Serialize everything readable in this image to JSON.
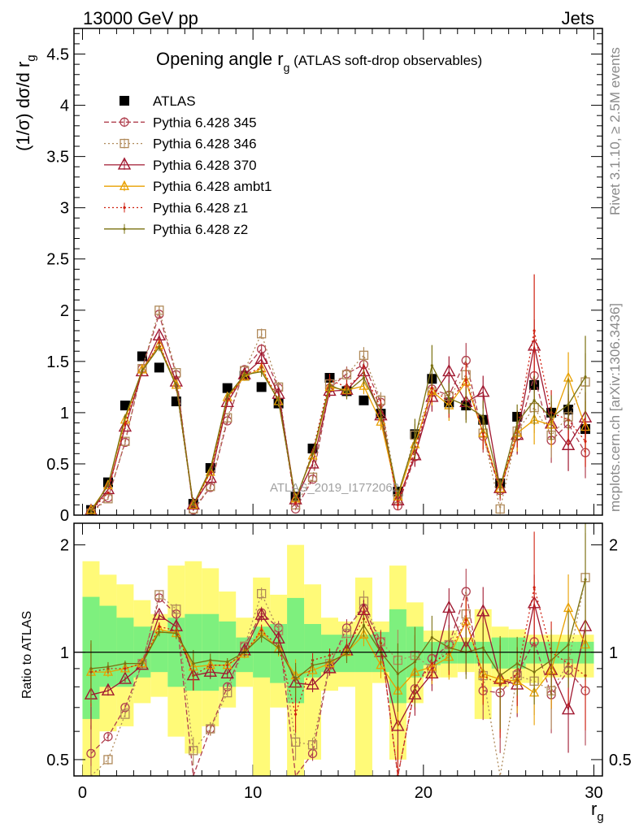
{
  "header": {
    "left": "13000 GeV pp",
    "right": "Jets",
    "side_rivet": "Rivet 3.1.10, ≥ 2.5M events",
    "side_mcplots": "mcplots.cern.ch [arXiv:1306.3436]",
    "watermark": "ATLAS_2019_I1772062"
  },
  "title": {
    "main": "Opening angle r",
    "sub": "g",
    "tail": " (ATLAS soft-drop observables)"
  },
  "axes": {
    "ylabel_main": "(1/σ) dσ/d r",
    "ylabel_main_sub": "g",
    "ylabel_ratio": "Ratio to ATLAS",
    "xlabel": "r",
    "xlabel_sub": "g",
    "x_ticks": [
      "0",
      "10",
      "20",
      "30"
    ],
    "y_ticks_main": [
      "0",
      "0.5",
      "1",
      "1.5",
      "2",
      "2.5",
      "3",
      "3.5",
      "4",
      "4.5"
    ],
    "y_ticks_ratio": [
      "0.5",
      "1",
      "2"
    ]
  },
  "chart_data": [
    {
      "type": "line",
      "panel": "main",
      "xlim": [
        -0.5,
        30.5
      ],
      "ylim": [
        0,
        4.75
      ],
      "x": [
        0.5,
        1.5,
        2.5,
        3.5,
        4.5,
        5.5,
        6.5,
        7.5,
        8.5,
        9.5,
        10.5,
        11.5,
        12.5,
        13.5,
        14.5,
        15.5,
        16.5,
        17.5,
        18.5,
        19.5,
        20.5,
        21.5,
        22.5,
        23.5,
        24.5,
        25.5,
        26.5,
        27.5,
        28.5,
        29.5
      ],
      "series": [
        {
          "name": "ATLAS",
          "color": "#000000",
          "style": "data",
          "marker": "square-filled",
          "values": [
            0.05,
            0.32,
            1.07,
            1.55,
            1.44,
            1.11,
            0.11,
            0.46,
            1.24,
            1.36,
            1.25,
            1.09,
            0.18,
            0.65,
            1.34,
            1.21,
            1.12,
            0.99,
            0.23,
            0.79,
            1.33,
            1.1,
            1.07,
            0.93,
            0.31,
            0.96,
            1.27,
            1.0,
            1.03,
            0.84
          ],
          "errors": [
            0.01,
            0.02,
            0.03,
            0.03,
            0.03,
            0.03,
            0.01,
            0.02,
            0.03,
            0.03,
            0.03,
            0.03,
            0.01,
            0.02,
            0.04,
            0.04,
            0.04,
            0.04,
            0.02,
            0.04,
            0.06,
            0.06,
            0.06,
            0.06,
            0.03,
            0.06,
            0.08,
            0.08,
            0.08,
            0.08
          ]
        },
        {
          "name": "Pythia 6.428 345",
          "color": "#b0404f",
          "style": "dashed",
          "marker": "circle",
          "values": [
            0.03,
            0.17,
            0.71,
            1.43,
            1.96,
            1.37,
            0.05,
            0.27,
            0.92,
            1.42,
            1.62,
            1.24,
            0.06,
            0.35,
            1.24,
            1.38,
            1.47,
            1.1,
            0.09,
            0.57,
            1.23,
            1.17,
            1.51,
            0.77,
            0.24,
            0.77,
            1.36,
            0.73,
            0.89,
            0.61
          ],
          "errors": [
            0.01,
            0.01,
            0.02,
            0.03,
            0.04,
            0.04,
            0.01,
            0.02,
            0.03,
            0.04,
            0.05,
            0.05,
            0.01,
            0.03,
            0.06,
            0.07,
            0.08,
            0.08,
            0.04,
            0.1,
            0.14,
            0.15,
            0.17,
            0.16,
            0.1,
            0.18,
            0.25,
            0.22,
            0.25,
            0.25
          ]
        },
        {
          "name": "Pythia 6.428 346",
          "color": "#b08a5a",
          "style": "dotted",
          "marker": "square",
          "values": [
            0.02,
            0.16,
            0.72,
            1.43,
            2.0,
            1.39,
            0.06,
            0.28,
            0.95,
            1.41,
            1.77,
            1.25,
            0.1,
            0.37,
            1.28,
            1.37,
            1.56,
            1.12,
            0.16,
            0.78,
            1.2,
            1.16,
            1.37,
            0.8,
            0.06,
            0.82,
            1.05,
            0.78,
            0.96,
            1.3
          ],
          "errors": [
            0.01,
            0.01,
            0.02,
            0.03,
            0.04,
            0.04,
            0.01,
            0.02,
            0.03,
            0.04,
            0.05,
            0.05,
            0.02,
            0.03,
            0.06,
            0.07,
            0.08,
            0.08,
            0.05,
            0.11,
            0.14,
            0.15,
            0.17,
            0.16,
            0.05,
            0.18,
            0.25,
            0.22,
            0.25,
            0.28
          ]
        },
        {
          "name": "Pythia 6.428 370",
          "color": "#a01830",
          "style": "solid",
          "marker": "triangle",
          "values": [
            0.04,
            0.25,
            0.86,
            1.4,
            1.75,
            1.3,
            0.1,
            0.36,
            1.1,
            1.37,
            1.52,
            1.18,
            0.15,
            0.5,
            1.21,
            1.22,
            1.4,
            0.97,
            0.14,
            0.58,
            1.15,
            1.4,
            1.1,
            1.2,
            0.26,
            0.78,
            1.65,
            0.89,
            0.68,
            0.95
          ],
          "errors": [
            0.01,
            0.01,
            0.02,
            0.03,
            0.04,
            0.04,
            0.01,
            0.02,
            0.03,
            0.04,
            0.05,
            0.05,
            0.02,
            0.03,
            0.06,
            0.07,
            0.08,
            0.08,
            0.05,
            0.1,
            0.14,
            0.15,
            0.17,
            0.16,
            0.09,
            0.18,
            0.26,
            0.22,
            0.25,
            0.25
          ]
        },
        {
          "name": "Pythia 6.428 ambt1",
          "color": "#e8a000",
          "style": "solid",
          "marker": "triangle-small",
          "values": [
            0.05,
            0.29,
            0.93,
            1.42,
            1.66,
            1.27,
            0.1,
            0.42,
            1.15,
            1.35,
            1.43,
            1.11,
            0.16,
            0.58,
            1.25,
            1.22,
            1.26,
            0.91,
            0.18,
            0.69,
            1.21,
            1.07,
            1.3,
            0.8,
            0.26,
            0.8,
            0.93,
            0.88,
            1.34,
            0.86
          ],
          "errors": [
            0.01,
            0.01,
            0.02,
            0.03,
            0.04,
            0.04,
            0.01,
            0.02,
            0.03,
            0.04,
            0.05,
            0.05,
            0.02,
            0.03,
            0.06,
            0.07,
            0.08,
            0.08,
            0.05,
            0.1,
            0.14,
            0.15,
            0.17,
            0.16,
            0.09,
            0.18,
            0.24,
            0.22,
            0.25,
            0.25
          ]
        },
        {
          "name": "Pythia 6.428 z1",
          "color": "#d02010",
          "style": "dotted",
          "marker": "dot",
          "values": [
            0.04,
            0.22,
            0.89,
            1.4,
            1.68,
            1.25,
            0.09,
            0.42,
            1.13,
            1.37,
            1.44,
            1.13,
            0.12,
            0.62,
            1.32,
            1.25,
            1.39,
            1.05,
            0.1,
            0.63,
            1.24,
            1.1,
            1.32,
            0.8,
            0.25,
            0.84,
            1.8,
            1.0,
            0.93,
            0.72
          ],
          "errors": [
            0.01,
            0.01,
            0.02,
            0.03,
            0.04,
            0.04,
            0.01,
            0.02,
            0.03,
            0.04,
            0.05,
            0.05,
            0.02,
            0.03,
            0.06,
            0.07,
            0.08,
            0.08,
            0.05,
            0.1,
            0.14,
            0.15,
            0.17,
            0.16,
            0.09,
            0.18,
            0.55,
            0.22,
            0.25,
            0.25
          ]
        },
        {
          "name": "Pythia 6.428 z2",
          "color": "#7a7010",
          "style": "solid",
          "marker": "dot",
          "values": [
            0.04,
            0.29,
            0.96,
            1.41,
            1.64,
            1.26,
            0.1,
            0.45,
            1.16,
            1.37,
            1.4,
            1.12,
            0.15,
            0.6,
            1.27,
            1.2,
            1.34,
            0.99,
            0.2,
            0.74,
            1.46,
            1.14,
            1.07,
            0.96,
            0.27,
            0.9,
            1.12,
            0.95,
            1.08,
            1.35
          ],
          "errors": [
            0.01,
            0.01,
            0.02,
            0.03,
            0.04,
            0.04,
            0.01,
            0.02,
            0.03,
            0.04,
            0.05,
            0.05,
            0.02,
            0.03,
            0.06,
            0.07,
            0.08,
            0.08,
            0.05,
            0.2,
            0.2,
            0.15,
            0.17,
            0.16,
            0.09,
            0.18,
            0.24,
            0.22,
            0.25,
            0.4
          ]
        }
      ]
    },
    {
      "type": "line",
      "panel": "ratio",
      "log_y": true,
      "ylim": [
        0.45,
        2.3
      ],
      "x": [
        0.5,
        1.5,
        2.5,
        3.5,
        4.5,
        5.5,
        6.5,
        7.5,
        8.5,
        9.5,
        10.5,
        11.5,
        12.5,
        13.5,
        14.5,
        15.5,
        16.5,
        17.5,
        18.5,
        19.5,
        20.5,
        21.5,
        22.5,
        23.5,
        24.5,
        25.5,
        26.5,
        27.5,
        28.5,
        29.5
      ],
      "band_green": {
        "lo": [
          0.65,
          0.8,
          0.8,
          0.85,
          0.88,
          0.8,
          0.78,
          0.78,
          0.8,
          0.88,
          0.85,
          0.82,
          0.72,
          0.85,
          0.88,
          0.88,
          0.88,
          0.88,
          0.72,
          0.85,
          0.92,
          0.93,
          0.93,
          0.93,
          0.9,
          0.9,
          0.93,
          0.93,
          0.93,
          0.93
        ],
        "hi": [
          1.43,
          1.35,
          1.25,
          1.18,
          1.15,
          1.25,
          1.28,
          1.28,
          1.22,
          1.1,
          1.18,
          1.2,
          1.42,
          1.2,
          1.12,
          1.12,
          1.12,
          1.14,
          1.32,
          1.18,
          1.07,
          1.07,
          1.07,
          1.07,
          1.1,
          1.1,
          1.07,
          1.07,
          1.07,
          1.07
        ]
      },
      "band_yellow": {
        "lo": [
          0.35,
          0.6,
          0.62,
          0.72,
          0.75,
          0.58,
          0.52,
          0.62,
          0.7,
          0.8,
          0.45,
          0.7,
          0.3,
          0.5,
          0.78,
          0.8,
          0.35,
          0.82,
          0.5,
          0.72,
          0.85,
          0.85,
          0.88,
          0.65,
          0.8,
          0.82,
          0.82,
          0.85,
          0.85,
          0.85
        ],
        "hi": [
          1.8,
          1.65,
          1.55,
          1.4,
          1.28,
          1.75,
          1.8,
          1.72,
          1.48,
          1.25,
          1.62,
          1.45,
          2.0,
          1.55,
          1.25,
          1.22,
          1.62,
          1.22,
          1.75,
          1.38,
          1.15,
          1.15,
          1.1,
          1.32,
          1.18,
          1.16,
          1.12,
          1.12,
          1.12,
          1.12
        ]
      },
      "series": [
        {
          "name": "Pythia 6.428 345",
          "values": [
            0.52,
            0.58,
            0.7,
            0.93,
            1.42,
            1.28,
            0.43,
            0.61,
            0.8,
            1.04,
            1.29,
            1.17,
            0.34,
            0.52,
            0.92,
            1.17,
            1.33,
            1.07,
            0.35,
            0.79,
            0.96,
            1.05,
            1.48,
            0.78,
            0.77,
            0.87,
            1.07,
            0.76,
            0.89,
            0.78
          ]
        },
        {
          "name": "Pythia 6.428 346",
          "values": [
            0.4,
            0.5,
            0.67,
            0.93,
            1.45,
            1.32,
            0.53,
            0.61,
            0.77,
            1.04,
            1.46,
            1.15,
            0.56,
            0.55,
            0.93,
            1.13,
            1.39,
            1.07,
            0.95,
            0.98,
            0.9,
            1.05,
            1.28,
            0.86,
            0.22,
            0.86,
            0.83,
            0.78,
            0.93,
            1.62
          ]
        },
        {
          "name": "Pythia 6.428 370",
          "values": [
            0.76,
            0.78,
            0.84,
            0.92,
            1.27,
            1.18,
            0.86,
            0.88,
            0.87,
            1.01,
            1.27,
            1.09,
            0.82,
            0.81,
            0.9,
            1.01,
            1.31,
            1.0,
            0.62,
            0.76,
            0.87,
            1.33,
            1.03,
            1.3,
            0.84,
            0.81,
            1.37,
            0.89,
            0.69,
            1.18
          ]
        },
        {
          "name": "Pythia 6.428 ambt1",
          "values": [
            0.88,
            0.88,
            0.9,
            0.93,
            1.16,
            1.13,
            0.91,
            0.92,
            0.92,
            0.99,
            1.14,
            1.02,
            0.86,
            0.89,
            0.93,
            1.0,
            1.12,
            0.92,
            0.78,
            0.88,
            0.91,
            0.97,
            1.22,
            0.87,
            0.84,
            0.83,
            0.77,
            0.89,
            1.33,
            1.05
          ]
        },
        {
          "name": "Pythia 6.428 z1",
          "values": [
            0.88,
            0.9,
            0.9,
            0.93,
            1.18,
            1.15,
            0.86,
            0.92,
            0.92,
            1.0,
            1.15,
            1.04,
            0.67,
            0.95,
            0.98,
            1.03,
            1.24,
            1.06,
            0.45,
            0.8,
            0.93,
            1.0,
            1.23,
            0.86,
            0.81,
            0.87,
            1.52,
            1.0,
            0.93,
            0.86
          ]
        },
        {
          "name": "Pythia 6.428 z2",
          "values": [
            0.9,
            0.91,
            0.93,
            0.93,
            1.14,
            1.13,
            0.93,
            0.95,
            0.94,
            1.0,
            1.11,
            1.03,
            0.84,
            0.92,
            0.94,
            0.99,
            1.19,
            1.0,
            0.87,
            0.94,
            1.1,
            1.03,
            1.0,
            1.03,
            0.86,
            0.93,
            0.88,
            0.95,
            1.05,
            1.6
          ]
        }
      ]
    }
  ],
  "colors": {
    "band_green": "#7ef07e",
    "band_yellow": "#fffa78"
  }
}
